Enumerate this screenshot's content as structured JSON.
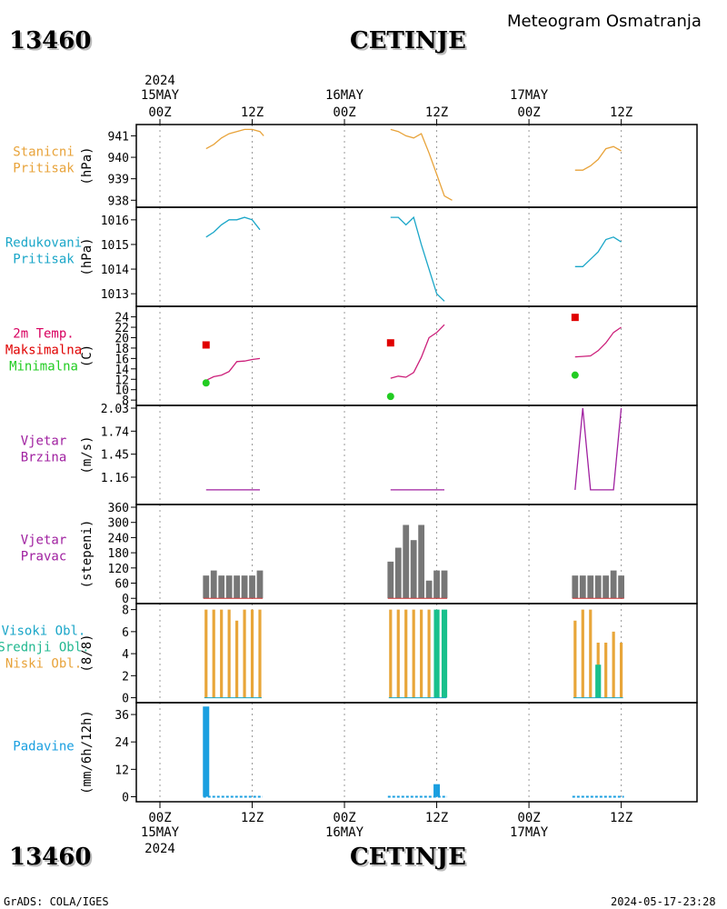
{
  "header": {
    "station_id": "13460",
    "station_name": "CETINJE",
    "subtitle": "Meteogram Osmatranja"
  },
  "footer": {
    "left": "GrADS: COLA/IGES",
    "right": "2024-05-17-23:28"
  },
  "time_axis": {
    "top_labels": [
      {
        "line1": "2024",
        "line2": "15MAY",
        "line3": "00Z",
        "hour": 0
      },
      {
        "line1": "",
        "line2": "",
        "line3": "12Z",
        "hour": 12
      },
      {
        "line1": "",
        "line2": "16MAY",
        "line3": "00Z",
        "hour": 24
      },
      {
        "line1": "",
        "line2": "",
        "line3": "12Z",
        "hour": 36
      },
      {
        "line1": "",
        "line2": "17MAY",
        "line3": "00Z",
        "hour": 48
      },
      {
        "line1": "",
        "line2": "",
        "line3": "12Z",
        "hour": 60
      }
    ],
    "bottom_labels": [
      {
        "line1": "00Z",
        "line2": "15MAY",
        "line3": "2024",
        "hour": 0
      },
      {
        "line1": "12Z",
        "line2": "",
        "line3": "",
        "hour": 12
      },
      {
        "line1": "00Z",
        "line2": "16MAY",
        "line3": "",
        "hour": 24
      },
      {
        "line1": "12Z",
        "line2": "",
        "line3": "",
        "hour": 36
      },
      {
        "line1": "00Z",
        "line2": "17MAY",
        "line3": "",
        "hour": 48
      },
      {
        "line1": "12Z",
        "line2": "",
        "line3": "",
        "hour": 60
      }
    ]
  },
  "chart_data": [
    {
      "id": "stanicni",
      "type": "line",
      "labels": [
        "Stanicni",
        "Pritisak"
      ],
      "label_colors": [
        "#e8a33a",
        "#e8a33a"
      ],
      "ylabel": "(hPa)",
      "ylim": [
        937.8,
        941.4
      ],
      "yticks": [
        938,
        939,
        940,
        941
      ],
      "series": [
        {
          "color": "#e8a33a",
          "segments": [
            [
              [
                6,
                940.4
              ],
              [
                7,
                940.6
              ],
              [
                8,
                940.9
              ],
              [
                9,
                941.1
              ],
              [
                10,
                941.2
              ],
              [
                11,
                941.3
              ],
              [
                12,
                941.3
              ],
              [
                13,
                941.2
              ],
              [
                13.5,
                941.0
              ]
            ],
            [
              [
                30,
                941.3
              ],
              [
                31,
                941.2
              ],
              [
                32,
                941.0
              ],
              [
                33,
                940.9
              ],
              [
                34,
                941.1
              ],
              [
                35,
                940.2
              ],
              [
                36,
                939.2
              ],
              [
                37,
                938.2
              ],
              [
                38,
                938.0
              ]
            ],
            [
              [
                54,
                939.4
              ],
              [
                55,
                939.4
              ],
              [
                56,
                939.6
              ],
              [
                57,
                939.9
              ],
              [
                58,
                940.4
              ],
              [
                59,
                940.5
              ],
              [
                60,
                940.3
              ]
            ]
          ]
        }
      ]
    },
    {
      "id": "redukovani",
      "type": "line",
      "labels": [
        "Redukovani",
        "Pritisak"
      ],
      "label_colors": [
        "#1aa6c8",
        "#1aa6c8"
      ],
      "ylabel": "(hPa)",
      "ylim": [
        1012.6,
        1016.4
      ],
      "yticks": [
        1013,
        1014,
        1015,
        1016
      ],
      "series": [
        {
          "color": "#1aa6c8",
          "segments": [
            [
              [
                6,
                1015.3
              ],
              [
                7,
                1015.5
              ],
              [
                8,
                1015.8
              ],
              [
                9,
                1016.0
              ],
              [
                10,
                1016.0
              ],
              [
                11,
                1016.1
              ],
              [
                12,
                1016.0
              ],
              [
                13,
                1015.6
              ]
            ],
            [
              [
                30,
                1016.1
              ],
              [
                31,
                1016.1
              ],
              [
                32,
                1015.8
              ],
              [
                33,
                1016.1
              ],
              [
                34,
                1015.0
              ],
              [
                35,
                1014.0
              ],
              [
                36,
                1013.0
              ],
              [
                37,
                1012.7
              ]
            ],
            [
              [
                54,
                1014.1
              ],
              [
                55,
                1014.1
              ],
              [
                56,
                1014.4
              ],
              [
                57,
                1014.7
              ],
              [
                58,
                1015.2
              ],
              [
                59,
                1015.3
              ],
              [
                60,
                1015.1
              ]
            ]
          ]
        }
      ]
    },
    {
      "id": "temperatura",
      "type": "line",
      "labels": [
        "2m Temp.",
        "Maksimalna",
        "Minimalna"
      ],
      "label_colors": [
        "#d8005f",
        "#e00000",
        "#22cc22"
      ],
      "ylabel": "(C)",
      "ylim": [
        7.5,
        25.5
      ],
      "yticks": [
        8,
        10,
        12,
        14,
        16,
        18,
        20,
        22,
        24
      ],
      "series": [
        {
          "name": "2m Temp.",
          "color": "#cc1f7a",
          "segments": [
            [
              [
                6,
                11.8
              ],
              [
                7,
                12.5
              ],
              [
                8,
                12.8
              ],
              [
                9,
                13.5
              ],
              [
                10,
                15.4
              ],
              [
                11,
                15.5
              ],
              [
                12,
                15.8
              ],
              [
                13,
                16.0
              ]
            ],
            [
              [
                30,
                12.2
              ],
              [
                31,
                12.6
              ],
              [
                32,
                12.4
              ],
              [
                33,
                13.3
              ],
              [
                34,
                16.2
              ],
              [
                35,
                20.0
              ],
              [
                36,
                21.0
              ],
              [
                37,
                22.5
              ]
            ],
            [
              [
                54,
                16.3
              ],
              [
                55,
                16.4
              ],
              [
                56,
                16.5
              ],
              [
                57,
                17.5
              ],
              [
                58,
                19.0
              ],
              [
                59,
                21.0
              ],
              [
                60,
                22.0
              ]
            ]
          ]
        }
      ],
      "max_points": [
        [
          6,
          18.6
        ],
        [
          30,
          19.0
        ],
        [
          54,
          23.9
        ]
      ],
      "min_points": [
        [
          6,
          11.3
        ],
        [
          30,
          8.7
        ],
        [
          54,
          12.8
        ]
      ],
      "max_color": "#e00000",
      "min_color": "#22cc22"
    },
    {
      "id": "vjetar_brzina",
      "type": "line",
      "labels": [
        "Vjetar",
        "Brzina"
      ],
      "label_colors": [
        "#a020a0",
        "#a020a0"
      ],
      "ylabel": "(m/s)",
      "ylim": [
        0.85,
        2.03
      ],
      "yticks": [
        1.16,
        1.45,
        1.74,
        2.03
      ],
      "series": [
        {
          "color": "#a020a0",
          "segments": [
            [
              [
                6,
                1.0
              ],
              [
                13,
                1.0
              ]
            ],
            [
              [
                30,
                1.0
              ],
              [
                37,
                1.0
              ]
            ],
            [
              [
                54,
                1.0
              ],
              [
                55,
                2.03
              ],
              [
                56,
                1.0
              ],
              [
                57,
                1.0
              ],
              [
                58,
                1.0
              ],
              [
                59,
                1.0
              ],
              [
                60,
                2.03
              ]
            ]
          ]
        }
      ]
    },
    {
      "id": "vjetar_pravac",
      "type": "bar",
      "labels": [
        "Vjetar",
        "Pravac"
      ],
      "label_colors": [
        "#a020a0",
        "#a020a0"
      ],
      "ylabel": "(stepeni)",
      "ylim": [
        -10,
        360
      ],
      "yticks": [
        0,
        60,
        120,
        180,
        240,
        300,
        360
      ],
      "bar_color": "#777777",
      "bars": [
        [
          6,
          90
        ],
        [
          7,
          110
        ],
        [
          8,
          90
        ],
        [
          9,
          90
        ],
        [
          10,
          90
        ],
        [
          11,
          90
        ],
        [
          12,
          90
        ],
        [
          13,
          110
        ],
        [
          30,
          145
        ],
        [
          31,
          200
        ],
        [
          32,
          290
        ],
        [
          33,
          230
        ],
        [
          34,
          290
        ],
        [
          35,
          70
        ],
        [
          36,
          110
        ],
        [
          37,
          110
        ],
        [
          54,
          90
        ],
        [
          55,
          90
        ],
        [
          56,
          90
        ],
        [
          57,
          90
        ],
        [
          58,
          90
        ],
        [
          59,
          110
        ],
        [
          60,
          90
        ]
      ]
    },
    {
      "id": "oblaci",
      "type": "bar",
      "labels": [
        "Visoki Obl.",
        "Srednji Obl.",
        "Niski Obl."
      ],
      "label_colors": [
        "#1aa6c8",
        "#22b890",
        "#e8a33a"
      ],
      "ylabel": "(8/8)",
      "ylim": [
        -0.2,
        8.3
      ],
      "yticks": [
        0,
        2,
        4,
        6,
        8
      ],
      "series": [
        {
          "name": "Niski Obl.",
          "color": "#e8a63a",
          "bars": [
            [
              6,
              8
            ],
            [
              7,
              8
            ],
            [
              8,
              8
            ],
            [
              9,
              8
            ],
            [
              10,
              7
            ],
            [
              11,
              8
            ],
            [
              12,
              8
            ],
            [
              13,
              8
            ],
            [
              30,
              8
            ],
            [
              31,
              8
            ],
            [
              32,
              8
            ],
            [
              33,
              8
            ],
            [
              34,
              8
            ],
            [
              35,
              8
            ],
            [
              54,
              7
            ],
            [
              55,
              8
            ],
            [
              56,
              8
            ],
            [
              57,
              5
            ],
            [
              58,
              5
            ],
            [
              59,
              6
            ],
            [
              60,
              5
            ]
          ]
        },
        {
          "name": "Srednji Obl.",
          "color": "#19c08c",
          "bars": [
            [
              36,
              8
            ],
            [
              37,
              8
            ],
            [
              57,
              3
            ]
          ]
        }
      ]
    },
    {
      "id": "padavine",
      "type": "bar",
      "labels": [
        "Padavine"
      ],
      "label_colors": [
        "#1a9fe0"
      ],
      "ylabel": "(mm/6h/12h)",
      "ylim": [
        -1,
        40
      ],
      "yticks": [
        0,
        12,
        24,
        36
      ],
      "bar_color": "#1a9fe0",
      "bars": [
        [
          6,
          39.5
        ],
        [
          36,
          5.5
        ]
      ],
      "trace_segments": [
        [
          6,
          13
        ],
        [
          30,
          37
        ],
        [
          54,
          60
        ]
      ]
    }
  ]
}
